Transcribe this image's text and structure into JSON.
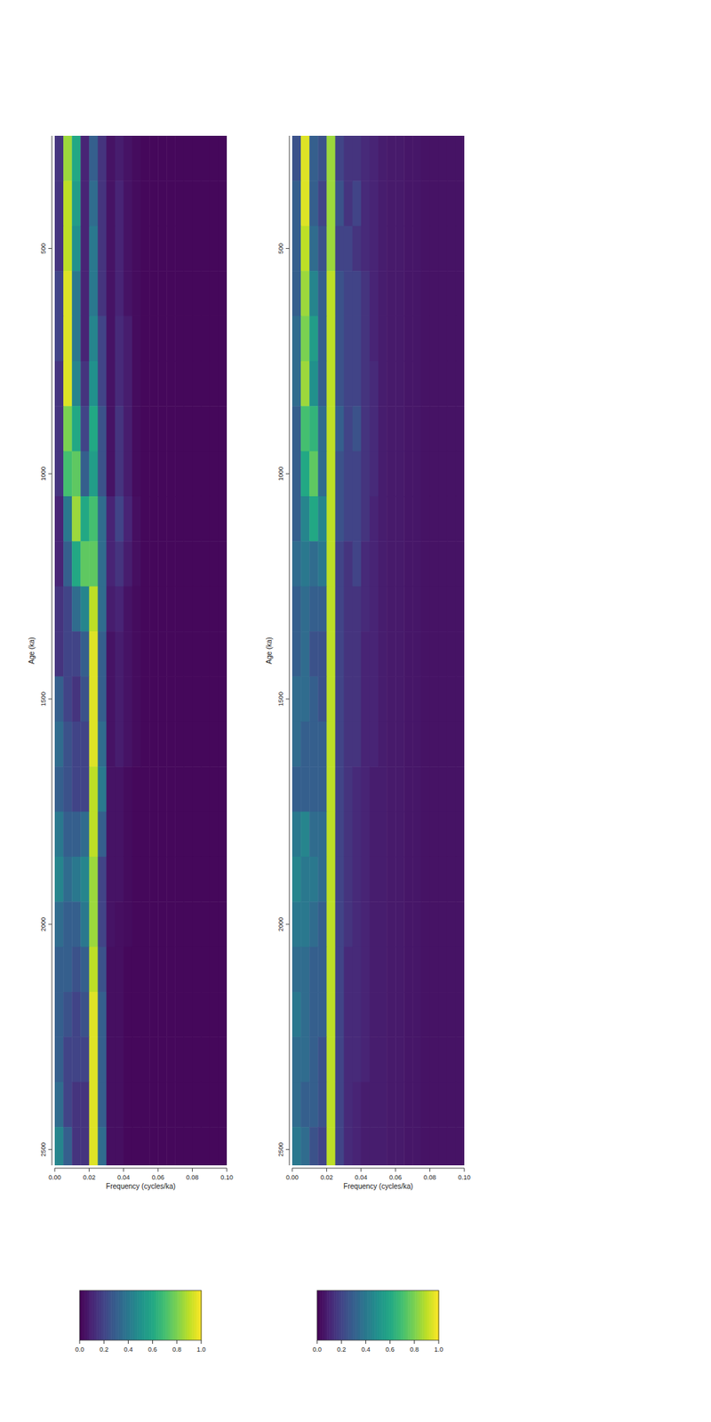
{
  "chart_data": [
    {
      "type": "heatmap",
      "x_label": "Frequency (cycles/ka)",
      "y_label": "Age (ka)",
      "x": [
        0.0025,
        0.0075,
        0.0125,
        0.0175,
        0.0225,
        0.0275,
        0.0325,
        0.0375,
        0.0425,
        0.0475,
        0.0525,
        0.0575,
        0.0625,
        0.0675,
        0.0725,
        0.0775,
        0.0825,
        0.0875,
        0.0925,
        0.0975
      ],
      "y": [
        300,
        400,
        500,
        600,
        700,
        800,
        900,
        1000,
        1100,
        1200,
        1300,
        1400,
        1500,
        1600,
        1700,
        1800,
        1900,
        2000,
        2100,
        2200,
        2300,
        2400,
        2500
      ],
      "values": [
        [
          0.15,
          0.85,
          0.6,
          0.1,
          0.3,
          0.15,
          0.05,
          0.08,
          0.05,
          0.03,
          0.02,
          0.02,
          0.02,
          0.02,
          0.02,
          0.02,
          0.02,
          0.02,
          0.02,
          0.02
        ],
        [
          0.15,
          0.9,
          0.55,
          0.1,
          0.35,
          0.15,
          0.05,
          0.1,
          0.05,
          0.03,
          0.02,
          0.02,
          0.02,
          0.02,
          0.02,
          0.02,
          0.02,
          0.02,
          0.02,
          0.02
        ],
        [
          0.15,
          0.9,
          0.5,
          0.1,
          0.4,
          0.15,
          0.05,
          0.1,
          0.05,
          0.03,
          0.02,
          0.02,
          0.02,
          0.02,
          0.02,
          0.02,
          0.02,
          0.02,
          0.02,
          0.02
        ],
        [
          0.2,
          0.95,
          0.4,
          0.1,
          0.4,
          0.15,
          0.05,
          0.1,
          0.05,
          0.03,
          0.02,
          0.02,
          0.02,
          0.02,
          0.02,
          0.02,
          0.02,
          0.02,
          0.02,
          0.02
        ],
        [
          0.2,
          0.95,
          0.4,
          0.1,
          0.45,
          0.2,
          0.05,
          0.12,
          0.08,
          0.03,
          0.02,
          0.02,
          0.02,
          0.02,
          0.02,
          0.02,
          0.02,
          0.02,
          0.02,
          0.02
        ],
        [
          0.15,
          0.95,
          0.45,
          0.15,
          0.5,
          0.2,
          0.05,
          0.12,
          0.08,
          0.03,
          0.02,
          0.02,
          0.02,
          0.02,
          0.02,
          0.02,
          0.02,
          0.02,
          0.02,
          0.02
        ],
        [
          0.15,
          0.8,
          0.6,
          0.2,
          0.6,
          0.25,
          0.05,
          0.15,
          0.08,
          0.03,
          0.02,
          0.02,
          0.02,
          0.02,
          0.02,
          0.02,
          0.02,
          0.02,
          0.02,
          0.02
        ],
        [
          0.15,
          0.7,
          0.75,
          0.3,
          0.55,
          0.25,
          0.05,
          0.15,
          0.08,
          0.03,
          0.02,
          0.02,
          0.02,
          0.02,
          0.02,
          0.02,
          0.02,
          0.02,
          0.02,
          0.02
        ],
        [
          0.1,
          0.4,
          0.85,
          0.6,
          0.7,
          0.35,
          0.1,
          0.2,
          0.1,
          0.04,
          0.02,
          0.02,
          0.02,
          0.02,
          0.02,
          0.02,
          0.02,
          0.02,
          0.02,
          0.02
        ],
        [
          0.1,
          0.3,
          0.6,
          0.75,
          0.75,
          0.35,
          0.1,
          0.15,
          0.08,
          0.04,
          0.02,
          0.02,
          0.02,
          0.02,
          0.02,
          0.02,
          0.02,
          0.02,
          0.02,
          0.02
        ],
        [
          0.15,
          0.2,
          0.35,
          0.45,
          0.9,
          0.35,
          0.08,
          0.1,
          0.05,
          0.03,
          0.02,
          0.02,
          0.02,
          0.02,
          0.02,
          0.02,
          0.02,
          0.02,
          0.02,
          0.02
        ],
        [
          0.15,
          0.2,
          0.2,
          0.3,
          0.95,
          0.3,
          0.05,
          0.08,
          0.05,
          0.03,
          0.02,
          0.02,
          0.02,
          0.02,
          0.02,
          0.02,
          0.02,
          0.02,
          0.02,
          0.02
        ],
        [
          0.3,
          0.2,
          0.15,
          0.25,
          0.95,
          0.3,
          0.05,
          0.08,
          0.05,
          0.03,
          0.02,
          0.02,
          0.02,
          0.02,
          0.02,
          0.02,
          0.02,
          0.02,
          0.02,
          0.02
        ],
        [
          0.35,
          0.25,
          0.2,
          0.2,
          0.95,
          0.35,
          0.05,
          0.08,
          0.05,
          0.03,
          0.02,
          0.02,
          0.02,
          0.02,
          0.02,
          0.02,
          0.02,
          0.02,
          0.02,
          0.02
        ],
        [
          0.3,
          0.25,
          0.2,
          0.2,
          0.9,
          0.4,
          0.05,
          0.05,
          0.03,
          0.02,
          0.02,
          0.02,
          0.02,
          0.02,
          0.02,
          0.02,
          0.02,
          0.02,
          0.02,
          0.02
        ],
        [
          0.4,
          0.3,
          0.3,
          0.35,
          0.9,
          0.3,
          0.05,
          0.05,
          0.03,
          0.02,
          0.02,
          0.02,
          0.02,
          0.02,
          0.02,
          0.02,
          0.02,
          0.02,
          0.02,
          0.02
        ],
        [
          0.45,
          0.35,
          0.4,
          0.45,
          0.85,
          0.2,
          0.05,
          0.05,
          0.03,
          0.02,
          0.02,
          0.02,
          0.02,
          0.02,
          0.02,
          0.02,
          0.02,
          0.02,
          0.02,
          0.02
        ],
        [
          0.35,
          0.3,
          0.3,
          0.4,
          0.85,
          0.2,
          0.05,
          0.04,
          0.03,
          0.02,
          0.02,
          0.02,
          0.02,
          0.02,
          0.02,
          0.02,
          0.02,
          0.02,
          0.02,
          0.02
        ],
        [
          0.3,
          0.3,
          0.25,
          0.3,
          0.9,
          0.25,
          0.04,
          0.04,
          0.02,
          0.02,
          0.02,
          0.02,
          0.02,
          0.02,
          0.02,
          0.02,
          0.02,
          0.02,
          0.02,
          0.02
        ],
        [
          0.3,
          0.25,
          0.2,
          0.25,
          0.95,
          0.3,
          0.04,
          0.04,
          0.02,
          0.02,
          0.02,
          0.02,
          0.02,
          0.02,
          0.02,
          0.02,
          0.02,
          0.02,
          0.02,
          0.02
        ],
        [
          0.3,
          0.2,
          0.2,
          0.2,
          0.95,
          0.3,
          0.04,
          0.04,
          0.02,
          0.02,
          0.02,
          0.02,
          0.02,
          0.02,
          0.02,
          0.02,
          0.02,
          0.02,
          0.02,
          0.02
        ],
        [
          0.35,
          0.2,
          0.15,
          0.15,
          0.95,
          0.3,
          0.04,
          0.04,
          0.02,
          0.02,
          0.02,
          0.02,
          0.02,
          0.02,
          0.02,
          0.02,
          0.02,
          0.02,
          0.02,
          0.02
        ],
        [
          0.45,
          0.3,
          0.15,
          0.15,
          0.95,
          0.35,
          0.04,
          0.04,
          0.02,
          0.02,
          0.02,
          0.02,
          0.02,
          0.02,
          0.02,
          0.02,
          0.02,
          0.02,
          0.02,
          0.02
        ]
      ],
      "xlim": [
        0,
        0.1
      ],
      "ylim": [
        250,
        2535
      ],
      "xticks": [
        {
          "value": 0,
          "label": "0.00"
        },
        {
          "value": 0.02,
          "label": "0.02"
        },
        {
          "value": 0.04,
          "label": "0.04"
        },
        {
          "value": 0.06,
          "label": "0.06"
        },
        {
          "value": 0.08,
          "label": "0.08"
        },
        {
          "value": 0.1,
          "label": "0.10"
        }
      ],
      "yticks": [
        500,
        1000,
        1500,
        2000,
        2500
      ],
      "colorbar_lim": [
        0,
        1
      ],
      "colorbar_ticks": [
        {
          "value": 0,
          "label": "0.0"
        },
        {
          "value": 0.2,
          "label": "0.2"
        },
        {
          "value": 0.4,
          "label": "0.4"
        },
        {
          "value": 0.6,
          "label": "0.6"
        },
        {
          "value": 0.8,
          "label": "0.8"
        },
        {
          "value": 1,
          "label": "1.0"
        }
      ]
    },
    {
      "type": "heatmap",
      "x_label": "Frequency (cycles/ka)",
      "y_label": "Age (ka)",
      "x": [
        0.0025,
        0.0075,
        0.0125,
        0.0175,
        0.0225,
        0.0275,
        0.0325,
        0.0375,
        0.0425,
        0.0475,
        0.0525,
        0.0575,
        0.0625,
        0.0675,
        0.0725,
        0.0775,
        0.0825,
        0.0875,
        0.0925,
        0.0975
      ],
      "y": [
        300,
        400,
        500,
        600,
        700,
        800,
        900,
        1000,
        1100,
        1200,
        1300,
        1400,
        1500,
        1600,
        1700,
        1800,
        1900,
        2000,
        2100,
        2200,
        2300,
        2400,
        2500
      ],
      "values": [
        [
          0.25,
          0.95,
          0.3,
          0.25,
          0.85,
          0.2,
          0.15,
          0.15,
          0.12,
          0.1,
          0.08,
          0.07,
          0.07,
          0.06,
          0.06,
          0.05,
          0.05,
          0.05,
          0.05,
          0.05
        ],
        [
          0.3,
          0.95,
          0.3,
          0.2,
          0.85,
          0.25,
          0.15,
          0.2,
          0.12,
          0.1,
          0.08,
          0.07,
          0.07,
          0.06,
          0.06,
          0.05,
          0.05,
          0.05,
          0.05,
          0.05
        ],
        [
          0.3,
          0.9,
          0.35,
          0.25,
          0.85,
          0.2,
          0.2,
          0.15,
          0.12,
          0.1,
          0.08,
          0.07,
          0.07,
          0.06,
          0.06,
          0.05,
          0.05,
          0.05,
          0.05,
          0.05
        ],
        [
          0.3,
          0.85,
          0.45,
          0.3,
          0.9,
          0.25,
          0.2,
          0.2,
          0.15,
          0.1,
          0.08,
          0.07,
          0.07,
          0.06,
          0.06,
          0.05,
          0.05,
          0.05,
          0.05,
          0.05
        ],
        [
          0.35,
          0.8,
          0.55,
          0.3,
          0.9,
          0.25,
          0.2,
          0.2,
          0.15,
          0.1,
          0.08,
          0.07,
          0.07,
          0.06,
          0.06,
          0.05,
          0.05,
          0.05,
          0.05,
          0.05
        ],
        [
          0.35,
          0.85,
          0.5,
          0.3,
          0.9,
          0.25,
          0.2,
          0.2,
          0.15,
          0.12,
          0.08,
          0.07,
          0.07,
          0.06,
          0.06,
          0.05,
          0.05,
          0.05,
          0.05,
          0.05
        ],
        [
          0.3,
          0.7,
          0.65,
          0.35,
          0.9,
          0.3,
          0.2,
          0.25,
          0.15,
          0.12,
          0.08,
          0.07,
          0.07,
          0.06,
          0.06,
          0.05,
          0.05,
          0.05,
          0.05,
          0.05
        ],
        [
          0.3,
          0.6,
          0.75,
          0.35,
          0.9,
          0.25,
          0.2,
          0.2,
          0.15,
          0.12,
          0.08,
          0.07,
          0.07,
          0.06,
          0.06,
          0.05,
          0.05,
          0.05,
          0.05,
          0.05
        ],
        [
          0.3,
          0.45,
          0.6,
          0.45,
          0.9,
          0.25,
          0.2,
          0.2,
          0.15,
          0.1,
          0.08,
          0.07,
          0.07,
          0.06,
          0.06,
          0.05,
          0.05,
          0.05,
          0.05,
          0.05
        ],
        [
          0.35,
          0.4,
          0.35,
          0.4,
          0.9,
          0.2,
          0.15,
          0.2,
          0.12,
          0.1,
          0.08,
          0.07,
          0.07,
          0.06,
          0.06,
          0.05,
          0.05,
          0.05,
          0.05,
          0.05
        ],
        [
          0.3,
          0.35,
          0.3,
          0.3,
          0.9,
          0.2,
          0.15,
          0.15,
          0.12,
          0.1,
          0.08,
          0.07,
          0.07,
          0.06,
          0.06,
          0.05,
          0.05,
          0.05,
          0.05,
          0.05
        ],
        [
          0.3,
          0.35,
          0.25,
          0.25,
          0.9,
          0.2,
          0.15,
          0.15,
          0.1,
          0.1,
          0.08,
          0.07,
          0.07,
          0.06,
          0.06,
          0.05,
          0.05,
          0.05,
          0.05,
          0.05
        ],
        [
          0.35,
          0.35,
          0.3,
          0.25,
          0.9,
          0.2,
          0.15,
          0.15,
          0.1,
          0.1,
          0.08,
          0.07,
          0.07,
          0.06,
          0.06,
          0.05,
          0.05,
          0.05,
          0.05,
          0.05
        ],
        [
          0.35,
          0.3,
          0.3,
          0.3,
          0.9,
          0.2,
          0.15,
          0.15,
          0.1,
          0.1,
          0.08,
          0.07,
          0.07,
          0.06,
          0.06,
          0.05,
          0.05,
          0.05,
          0.05,
          0.05
        ],
        [
          0.3,
          0.3,
          0.3,
          0.3,
          0.9,
          0.2,
          0.15,
          0.12,
          0.1,
          0.08,
          0.08,
          0.07,
          0.07,
          0.06,
          0.06,
          0.05,
          0.05,
          0.05,
          0.05,
          0.05
        ],
        [
          0.4,
          0.45,
          0.35,
          0.35,
          0.9,
          0.2,
          0.15,
          0.12,
          0.1,
          0.08,
          0.08,
          0.07,
          0.07,
          0.06,
          0.06,
          0.05,
          0.05,
          0.05,
          0.05,
          0.05
        ],
        [
          0.45,
          0.4,
          0.4,
          0.35,
          0.9,
          0.2,
          0.15,
          0.12,
          0.1,
          0.08,
          0.08,
          0.07,
          0.07,
          0.06,
          0.06,
          0.05,
          0.05,
          0.05,
          0.05,
          0.05
        ],
        [
          0.4,
          0.4,
          0.35,
          0.3,
          0.9,
          0.2,
          0.15,
          0.12,
          0.1,
          0.08,
          0.08,
          0.07,
          0.07,
          0.06,
          0.06,
          0.05,
          0.05,
          0.05,
          0.05,
          0.05
        ],
        [
          0.35,
          0.35,
          0.3,
          0.3,
          0.9,
          0.2,
          0.12,
          0.12,
          0.1,
          0.08,
          0.08,
          0.07,
          0.07,
          0.06,
          0.06,
          0.05,
          0.05,
          0.05,
          0.05,
          0.05
        ],
        [
          0.4,
          0.35,
          0.3,
          0.3,
          0.9,
          0.2,
          0.12,
          0.12,
          0.1,
          0.08,
          0.08,
          0.07,
          0.07,
          0.06,
          0.06,
          0.05,
          0.05,
          0.05,
          0.05,
          0.05
        ],
        [
          0.35,
          0.35,
          0.3,
          0.25,
          0.9,
          0.2,
          0.12,
          0.12,
          0.1,
          0.08,
          0.08,
          0.07,
          0.07,
          0.06,
          0.06,
          0.05,
          0.05,
          0.05,
          0.05,
          0.05
        ],
        [
          0.35,
          0.3,
          0.3,
          0.25,
          0.9,
          0.2,
          0.12,
          0.1,
          0.08,
          0.08,
          0.08,
          0.07,
          0.07,
          0.06,
          0.06,
          0.05,
          0.05,
          0.05,
          0.05,
          0.05
        ],
        [
          0.4,
          0.35,
          0.25,
          0.2,
          0.9,
          0.2,
          0.12,
          0.1,
          0.08,
          0.08,
          0.08,
          0.07,
          0.07,
          0.06,
          0.06,
          0.05,
          0.05,
          0.05,
          0.05,
          0.05
        ]
      ],
      "xlim": [
        0,
        0.1
      ],
      "ylim": [
        250,
        2535
      ],
      "xticks": [
        {
          "value": 0,
          "label": "0.00"
        },
        {
          "value": 0.02,
          "label": "0.02"
        },
        {
          "value": 0.04,
          "label": "0.04"
        },
        {
          "value": 0.06,
          "label": "0.06"
        },
        {
          "value": 0.08,
          "label": "0.08"
        },
        {
          "value": 0.1,
          "label": "0.10"
        }
      ],
      "yticks": [
        500,
        1000,
        1500,
        2000,
        2500
      ],
      "colorbar_lim": [
        0,
        1
      ],
      "colorbar_ticks": [
        {
          "value": 0,
          "label": "0.0"
        },
        {
          "value": 0.2,
          "label": "0.2"
        },
        {
          "value": 0.4,
          "label": "0.4"
        },
        {
          "value": 0.6,
          "label": "0.6"
        },
        {
          "value": 0.8,
          "label": "0.8"
        },
        {
          "value": 1,
          "label": "1.0"
        }
      ]
    }
  ]
}
